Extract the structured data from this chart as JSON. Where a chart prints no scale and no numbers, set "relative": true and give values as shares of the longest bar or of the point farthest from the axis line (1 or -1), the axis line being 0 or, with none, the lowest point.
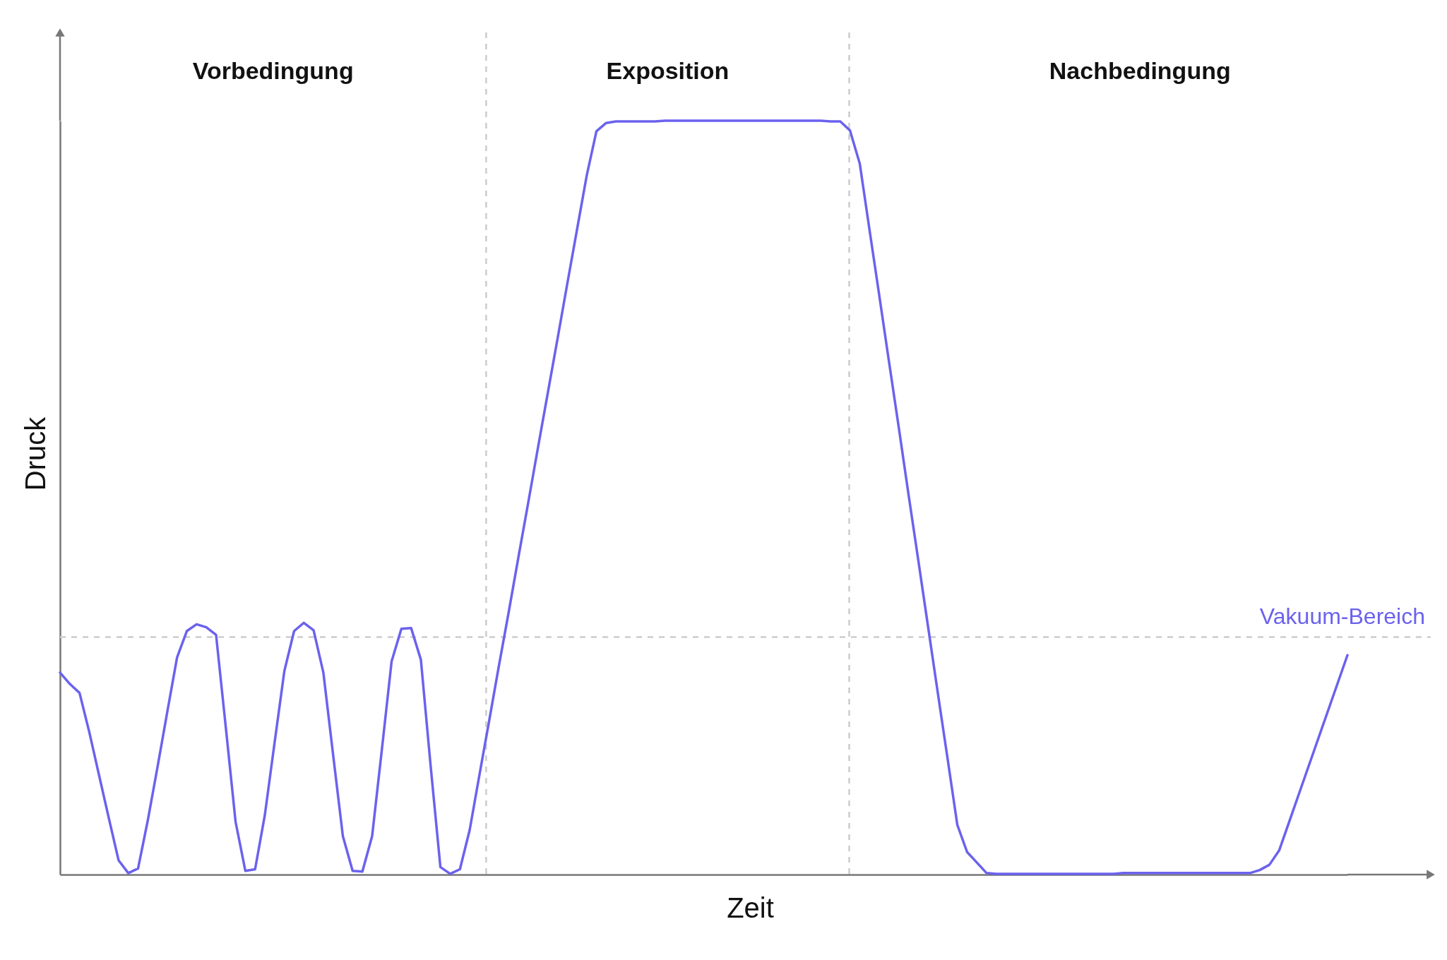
{
  "chart_data": {
    "type": "line",
    "xlabel": "Zeit",
    "ylabel": "Druck",
    "relative": true,
    "tick_labels": false,
    "annotations": [
      "Vorbedingung",
      "Exposition",
      "Nachbedingung"
    ],
    "categories": [
      null,
      null,
      null,
      null,
      null,
      null,
      null,
      null,
      null,
      null,
      null,
      null,
      null,
      null,
      null,
      null,
      null,
      null,
      null,
      null,
      null,
      null,
      null,
      null,
      null,
      null,
      null,
      null,
      null,
      null,
      null,
      null,
      null,
      null,
      null,
      null,
      null,
      null,
      null,
      null,
      null,
      null,
      null,
      null,
      null,
      null,
      null,
      null,
      null,
      null,
      null,
      null,
      null,
      null,
      null,
      null,
      null,
      null,
      null,
      null,
      null,
      null,
      null,
      null,
      null,
      null,
      null,
      null,
      null,
      null,
      null,
      null,
      null,
      null,
      null,
      null,
      null,
      null,
      null,
      null,
      null,
      null,
      null,
      null,
      null,
      null,
      null,
      null,
      null,
      null,
      null,
      null,
      null,
      null,
      null,
      null,
      null,
      null,
      null,
      null,
      null,
      null,
      null,
      null,
      null,
      null,
      null,
      null,
      null,
      null,
      null,
      null,
      null,
      null,
      null,
      null,
      null,
      null,
      null,
      null,
      null,
      null,
      null,
      null,
      null,
      null,
      null,
      null,
      null,
      null,
      null,
      null,
      null
    ],
    "series": [
      {
        "color": "#6b62ee",
        "values": [
          0.268,
          0.253,
          0.241,
          0.189,
          0.132,
          0.075,
          0.019,
          0.002,
          0.008,
          0.072,
          0.143,
          0.216,
          0.288,
          0.323,
          0.332,
          0.328,
          0.318,
          0.195,
          0.07,
          0.005,
          0.007,
          0.079,
          0.175,
          0.27,
          0.323,
          0.334,
          0.324,
          0.268,
          0.159,
          0.051,
          0.005,
          0.004,
          0.051,
          0.166,
          0.283,
          0.326,
          0.327,
          0.285,
          0.144,
          0.01,
          0.001,
          0.007,
          0.059,
          0.132,
          0.204,
          0.277,
          0.348,
          0.421,
          0.493,
          0.566,
          0.638,
          0.71,
          0.783,
          0.855,
          0.927,
          0.986,
          0.997,
          0.999,
          0.999,
          0.999,
          0.999,
          0.999,
          1,
          1,
          1,
          1,
          1,
          1,
          1,
          1,
          1,
          1,
          1,
          1,
          1,
          1,
          1,
          1,
          1,
          0.999,
          0.999,
          0.987,
          0.943,
          0.855,
          0.768,
          0.68,
          0.593,
          0.504,
          0.417,
          0.329,
          0.241,
          0.154,
          0.066,
          0.03,
          0.016,
          0.002,
          0.001,
          0.001,
          0.001,
          0.001,
          0.001,
          0.001,
          0.001,
          0.001,
          0.001,
          0.001,
          0.001,
          0.001,
          0.001,
          0.002,
          0.002,
          0.002,
          0.002,
          0.002,
          0.002,
          0.002,
          0.002,
          0.002,
          0.002,
          0.002,
          0.002,
          0.002,
          0.002,
          0.006,
          0.013,
          0.032,
          0.069,
          0.106,
          0.143,
          0.18,
          0.217,
          0.254,
          0.291
        ]
      }
    ],
    "ref_lines": [
      {
        "axis": "y",
        "value": 0.315,
        "label": "Vakuum-Bereich",
        "color": "#cccccc",
        "line_style": "dashed"
      }
    ]
  }
}
